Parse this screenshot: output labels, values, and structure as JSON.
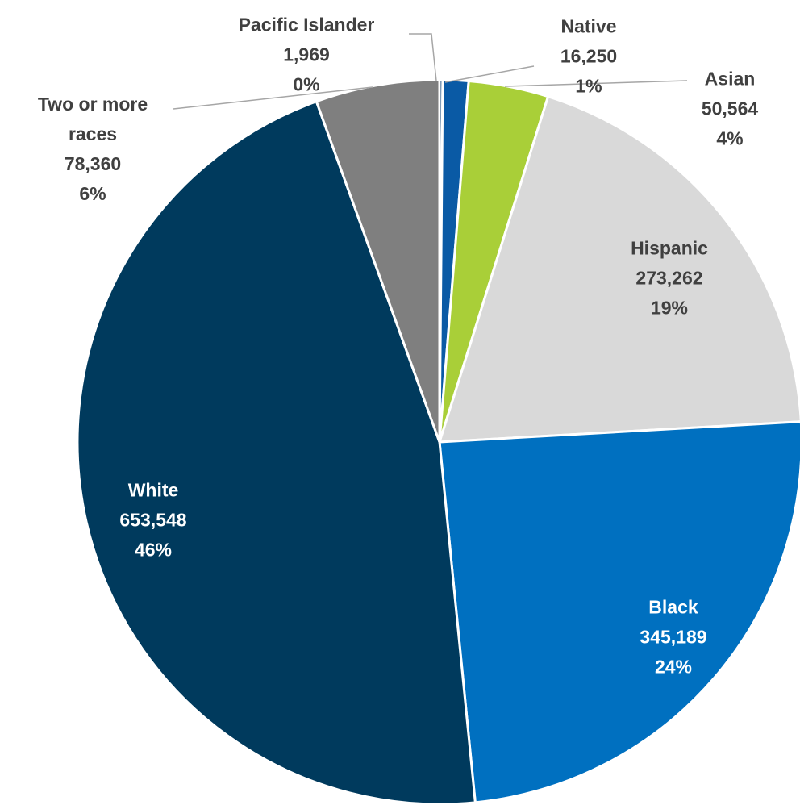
{
  "chart_data": {
    "type": "pie",
    "categories": [
      "Pacific Islander",
      "Native",
      "Asian",
      "Hispanic",
      "Black",
      "White",
      "Two or more races"
    ],
    "values": [
      1969,
      16250,
      50564,
      273262,
      345189,
      653548,
      78360
    ],
    "value_labels": [
      "1,969",
      "16,250",
      "50,564",
      "273,262",
      "345,189",
      "653,548",
      "78,360"
    ],
    "percent_values": [
      0,
      1,
      4,
      19,
      24,
      46,
      6
    ],
    "percent_labels": [
      "0%",
      "1%",
      "4%",
      "19%",
      "24%",
      "46%",
      "6%"
    ],
    "colors": [
      "#003a70",
      "#0a5aa5",
      "#a9cf38",
      "#d9d9d9",
      "#0070c0",
      "#003a5d",
      "#7f7f7f"
    ],
    "label_colors": [
      "#404040",
      "#404040",
      "#404040",
      "#404040",
      "#ffffff",
      "#ffffff",
      "#404040"
    ]
  }
}
